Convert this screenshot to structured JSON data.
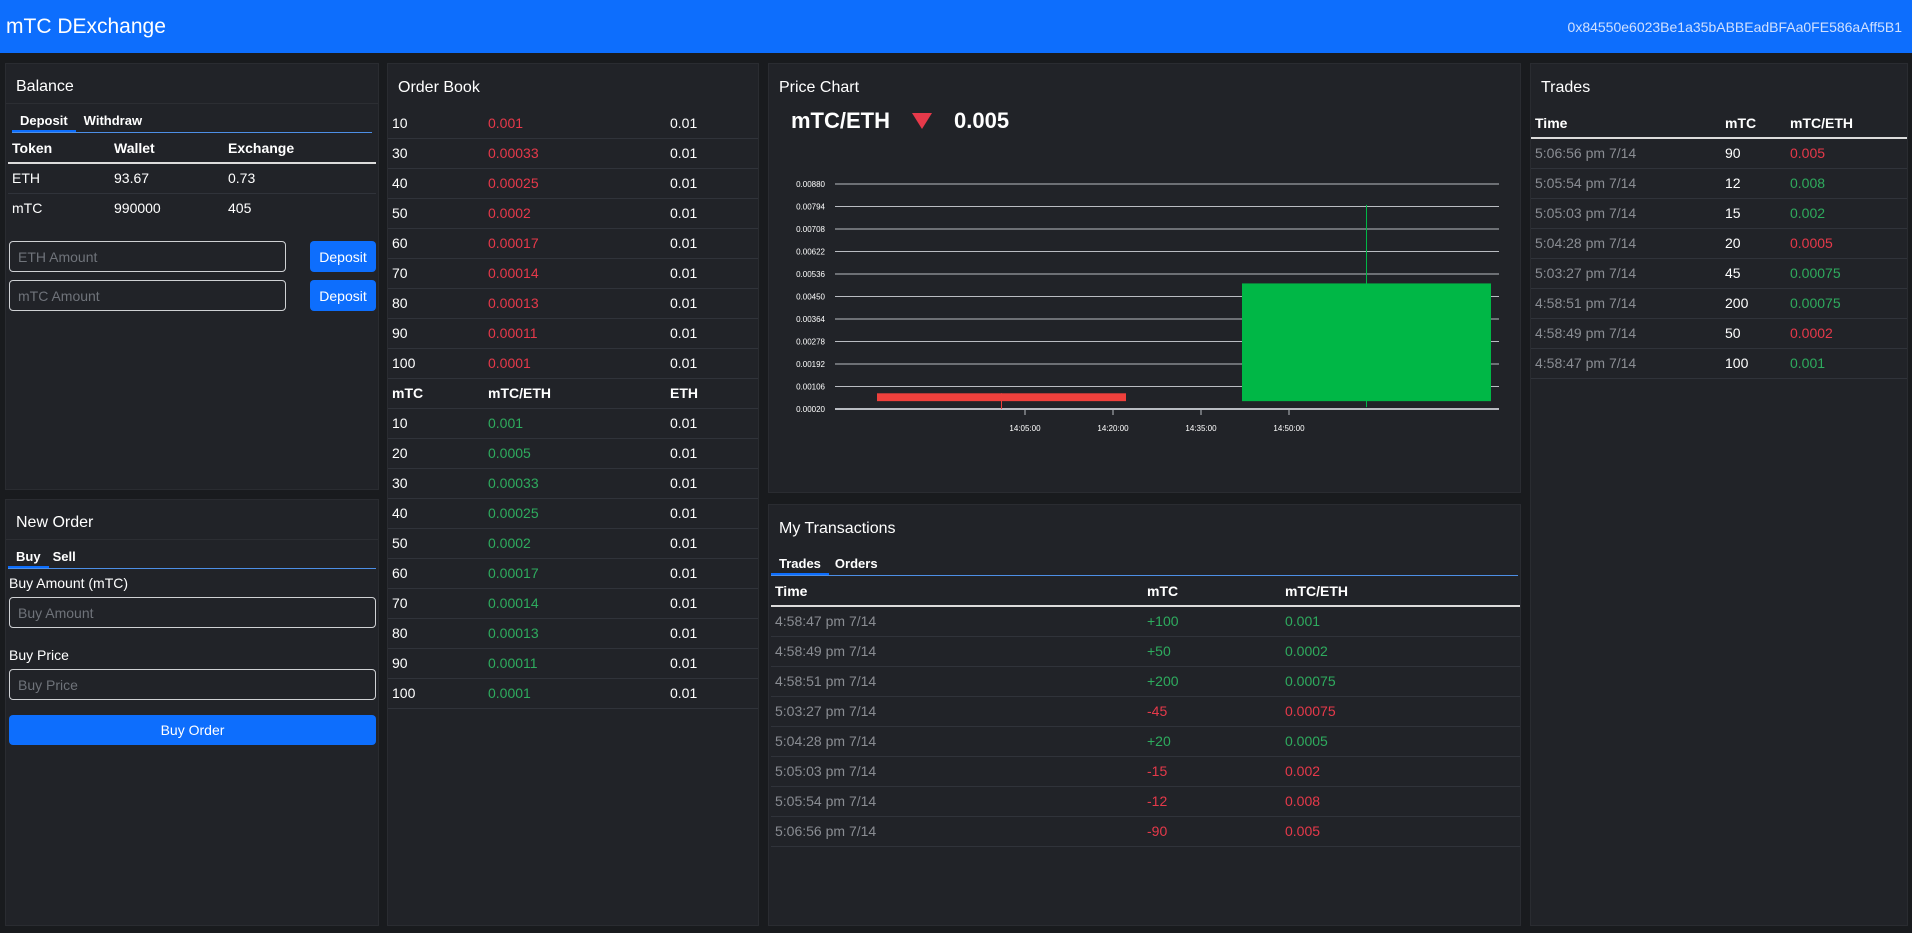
{
  "navbar": {
    "brand": "mTC DExchange",
    "account": "0x84550e6023Be1a35bABBEadBFAa0FE586aAff5B1"
  },
  "balance": {
    "title": "Balance",
    "tabs": [
      "Deposit",
      "Withdraw"
    ],
    "headers": [
      "Token",
      "Wallet",
      "Exchange"
    ],
    "rows": [
      [
        "ETH",
        "93.67",
        "0.73"
      ],
      [
        "mTC",
        "990000",
        "405"
      ]
    ],
    "eth_placeholder": "ETH Amount",
    "mtc_placeholder": "mTC Amount",
    "deposit_label": "Deposit"
  },
  "new_order": {
    "title": "New Order",
    "tabs": [
      "Buy",
      "Sell"
    ],
    "amount_label": "Buy Amount (mTC)",
    "amount_placeholder": "Buy Amount",
    "price_label": "Buy Price",
    "price_placeholder": "Buy Price",
    "submit_label": "Buy Order"
  },
  "order_book": {
    "title": "Order Book",
    "sell_orders": [
      [
        "10",
        "0.001",
        "0.01"
      ],
      [
        "30",
        "0.00033",
        "0.01"
      ],
      [
        "40",
        "0.00025",
        "0.01"
      ],
      [
        "50",
        "0.0002",
        "0.01"
      ],
      [
        "60",
        "0.00017",
        "0.01"
      ],
      [
        "70",
        "0.00014",
        "0.01"
      ],
      [
        "80",
        "0.00013",
        "0.01"
      ],
      [
        "90",
        "0.00011",
        "0.01"
      ],
      [
        "100",
        "0.0001",
        "0.01"
      ]
    ],
    "headers": [
      "mTC",
      "mTC/ETH",
      "ETH"
    ],
    "buy_orders": [
      [
        "10",
        "0.001",
        "0.01"
      ],
      [
        "20",
        "0.0005",
        "0.01"
      ],
      [
        "30",
        "0.00033",
        "0.01"
      ],
      [
        "40",
        "0.00025",
        "0.01"
      ],
      [
        "50",
        "0.0002",
        "0.01"
      ],
      [
        "60",
        "0.00017",
        "0.01"
      ],
      [
        "70",
        "0.00014",
        "0.01"
      ],
      [
        "80",
        "0.00013",
        "0.01"
      ],
      [
        "90",
        "0.00011",
        "0.01"
      ],
      [
        "100",
        "0.0001",
        "0.01"
      ]
    ]
  },
  "price_chart": {
    "title": "Price Chart",
    "pair": "mTC/ETH",
    "last_price": "0.005",
    "colors": {
      "up": "#00b746",
      "down": "#ef403c"
    }
  },
  "chart_data": {
    "type": "candlestick",
    "y_ticks": [
      "0.00880",
      "0.00794",
      "0.00708",
      "0.00622",
      "0.00536",
      "0.00450",
      "0.00364",
      "0.00278",
      "0.00192",
      "0.00106",
      "0.00020"
    ],
    "ylim": [
      0.0002,
      0.0088
    ],
    "x_ticks": [
      "14:05:00",
      "14:20:00",
      "14:35:00",
      "14:50:00"
    ],
    "candles": [
      {
        "open": 0.0008,
        "high": 0.0008,
        "low": 0.0002,
        "close": 0.0005,
        "direction": "down"
      },
      {
        "open": 0.0005,
        "high": 0.008,
        "low": 0.0005,
        "close": 0.005,
        "direction": "up"
      }
    ]
  },
  "my_transactions": {
    "title": "My Transactions",
    "tabs": [
      "Trades",
      "Orders"
    ],
    "headers": [
      "Time",
      "mTC",
      "mTC/ETH"
    ],
    "rows": [
      [
        "4:58:47 pm 7/14",
        "+100",
        "0.001",
        "green"
      ],
      [
        "4:58:49 pm 7/14",
        "+50",
        "0.0002",
        "green"
      ],
      [
        "4:58:51 pm 7/14",
        "+200",
        "0.00075",
        "green"
      ],
      [
        "5:03:27 pm 7/14",
        "-45",
        "0.00075",
        "red"
      ],
      [
        "5:04:28 pm 7/14",
        "+20",
        "0.0005",
        "green"
      ],
      [
        "5:05:03 pm 7/14",
        "-15",
        "0.002",
        "red"
      ],
      [
        "5:05:54 pm 7/14",
        "-12",
        "0.008",
        "red"
      ],
      [
        "5:06:56 pm 7/14",
        "-90",
        "0.005",
        "red"
      ]
    ]
  },
  "trades": {
    "title": "Trades",
    "headers": [
      "Time",
      "mTC",
      "mTC/ETH"
    ],
    "rows": [
      [
        "5:06:56 pm 7/14",
        "90",
        "0.005",
        "red"
      ],
      [
        "5:05:54 pm 7/14",
        "12",
        "0.008",
        "green"
      ],
      [
        "5:05:03 pm 7/14",
        "15",
        "0.002",
        "green"
      ],
      [
        "5:04:28 pm 7/14",
        "20",
        "0.0005",
        "red"
      ],
      [
        "5:03:27 pm 7/14",
        "45",
        "0.00075",
        "green"
      ],
      [
        "4:58:51 pm 7/14",
        "200",
        "0.00075",
        "green"
      ],
      [
        "4:58:49 pm 7/14",
        "50",
        "0.0002",
        "red"
      ],
      [
        "4:58:47 pm 7/14",
        "100",
        "0.001",
        "green"
      ]
    ]
  }
}
